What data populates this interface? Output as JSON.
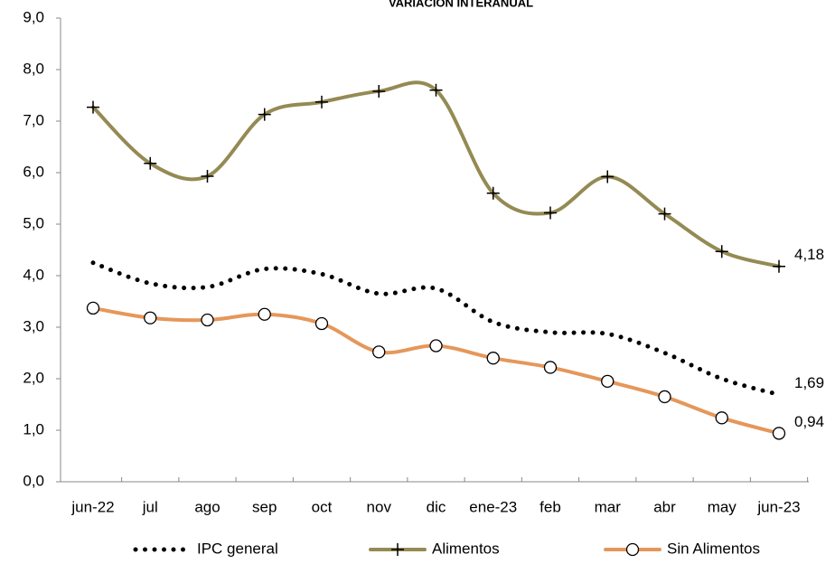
{
  "chart_data": {
    "type": "line",
    "title": "VARIACIÓN INTERANUAL",
    "categories": [
      "jun-22",
      "jul",
      "ago",
      "sep",
      "oct",
      "nov",
      "dic",
      "ene-23",
      "feb",
      "mar",
      "abr",
      "may",
      "jun-23"
    ],
    "ylim": [
      0,
      9
    ],
    "yticks": [
      {
        "value": 0,
        "label": "0,0"
      },
      {
        "value": 1,
        "label": "1,0"
      },
      {
        "value": 2,
        "label": "2,0"
      },
      {
        "value": 3,
        "label": "3,0"
      },
      {
        "value": 4,
        "label": "4,0"
      },
      {
        "value": 5,
        "label": "5,0"
      },
      {
        "value": 6,
        "label": "6,0"
      },
      {
        "value": 7,
        "label": "7,0"
      },
      {
        "value": 8,
        "label": "8,0"
      },
      {
        "value": 9,
        "label": "9,0"
      }
    ],
    "grid": false,
    "legend": "bottom",
    "series": [
      {
        "name": "IPC general",
        "color": "#000000",
        "style": "dotted",
        "marker": "none",
        "values": [
          4.25,
          3.85,
          3.78,
          4.13,
          4.03,
          3.65,
          3.75,
          3.1,
          2.9,
          2.87,
          2.5,
          2.0,
          1.69
        ],
        "value_labels": [
          null,
          null,
          null,
          null,
          null,
          null,
          null,
          null,
          null,
          null,
          null,
          null,
          "1,69"
        ]
      },
      {
        "name": "Alimentos",
        "color": "#948a54",
        "style": "solid",
        "marker": "plus",
        "values": [
          7.27,
          6.18,
          5.93,
          7.13,
          7.37,
          7.58,
          7.6,
          5.6,
          5.22,
          5.92,
          5.2,
          4.47,
          4.18
        ],
        "value_labels": [
          null,
          null,
          null,
          null,
          null,
          null,
          null,
          null,
          null,
          null,
          null,
          null,
          "4,18"
        ]
      },
      {
        "name": "Sin Alimentos",
        "color": "#e5975a",
        "style": "solid",
        "marker": "circle",
        "values": [
          3.37,
          3.18,
          3.14,
          3.25,
          3.07,
          2.52,
          2.64,
          2.4,
          2.22,
          1.95,
          1.65,
          1.24,
          0.94
        ],
        "value_labels": [
          null,
          null,
          null,
          null,
          null,
          null,
          null,
          null,
          null,
          null,
          null,
          null,
          "0,94"
        ]
      }
    ]
  }
}
